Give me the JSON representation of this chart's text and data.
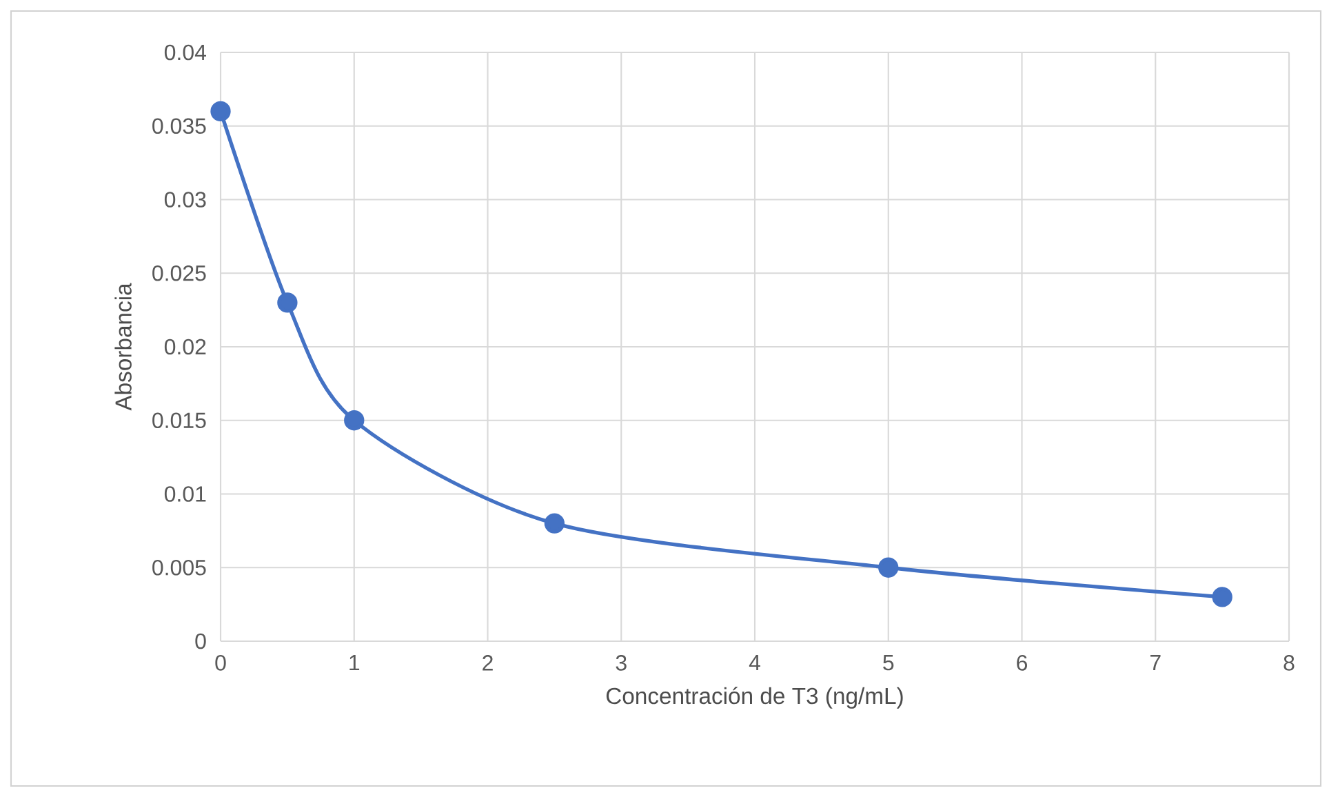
{
  "chart_data": {
    "type": "line",
    "xlabel": "Concentración de T3  (ng/mL)",
    "ylabel": "Absorbancia",
    "x": [
      0,
      0.5,
      1,
      2.5,
      5,
      7.5
    ],
    "series": [
      {
        "color": "#4472c4",
        "values": [
          0.036,
          0.023,
          0.015,
          0.008,
          0.005,
          0.003
        ]
      }
    ],
    "xlim": [
      0,
      8
    ],
    "xticks": [
      0,
      1,
      2,
      3,
      4,
      5,
      6,
      7,
      8
    ],
    "ylim": [
      0,
      0.04
    ],
    "yticks": [
      0,
      0.005,
      0.01,
      0.015,
      0.02,
      0.025,
      0.03,
      0.035,
      0.04
    ],
    "grid": true,
    "marker": "circle",
    "line_style": "solid"
  }
}
